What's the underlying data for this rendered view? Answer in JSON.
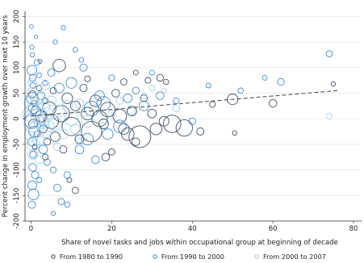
{
  "chart_data": {
    "type": "scatter",
    "xlabel": "Share of novel tasks  and jobs within occupational group at beginning of decade",
    "ylabel": "Percent change in employment growth over next 10 years",
    "xlim": [
      -1.5,
      82
    ],
    "ylim": [
      -200,
      210
    ],
    "xticks": [
      0,
      20,
      40,
      60,
      80
    ],
    "yticks": [
      -200,
      -150,
      -100,
      -50,
      0,
      50,
      100,
      150,
      200
    ],
    "grid": "horizontal",
    "legend_position": "bottom",
    "series": [
      {
        "name": "From 1980 to 1990",
        "color": "#2c3e5c",
        "marker": "hollow-circle",
        "points": [
          {
            "x": 0.3,
            "y": 48,
            "s": 1.5
          },
          {
            "x": 0.8,
            "y": 30,
            "s": 1.2
          },
          {
            "x": 1.2,
            "y": 15,
            "s": 2.0
          },
          {
            "x": 0.5,
            "y": -10,
            "s": 1.8
          },
          {
            "x": 1.5,
            "y": -30,
            "s": 1.3
          },
          {
            "x": 0.9,
            "y": -55,
            "s": 1.0
          },
          {
            "x": 2.0,
            "y": 60,
            "s": 1.1
          },
          {
            "x": 2.5,
            "y": 5,
            "s": 2.4
          },
          {
            "x": 3.0,
            "y": -20,
            "s": 1.6
          },
          {
            "x": 3.5,
            "y": 35,
            "s": 1.2
          },
          {
            "x": 4.0,
            "y": -45,
            "s": 1.4
          },
          {
            "x": 4.5,
            "y": 20,
            "s": 2.8
          },
          {
            "x": 5.0,
            "y": -5,
            "s": 3.0
          },
          {
            "x": 5.5,
            "y": 55,
            "s": 1.3
          },
          {
            "x": 6.0,
            "y": -35,
            "s": 2.0
          },
          {
            "x": 7.0,
            "y": 104,
            "s": 2.6
          },
          {
            "x": 7.5,
            "y": 10,
            "s": 3.4
          },
          {
            "x": 8.0,
            "y": -60,
            "s": 1.5
          },
          {
            "x": 9.0,
            "y": 40,
            "s": 2.2
          },
          {
            "x": 10.0,
            "y": -15,
            "s": 3.8
          },
          {
            "x": 11.0,
            "y": 25,
            "s": 2.0
          },
          {
            "x": 12.0,
            "y": -40,
            "s": 1.8
          },
          {
            "x": 13.0,
            "y": 60,
            "s": 1.5
          },
          {
            "x": 14.0,
            "y": 10,
            "s": 2.6
          },
          {
            "x": 15.0,
            "y": -25,
            "s": 4.2
          },
          {
            "x": 16.0,
            "y": 35,
            "s": 2.4
          },
          {
            "x": 17.0,
            "y": 0,
            "s": 3.2
          },
          {
            "x": 18.0,
            "y": -10,
            "s": 2.0
          },
          {
            "x": 19.0,
            "y": 18,
            "s": 3.0
          },
          {
            "x": 20.0,
            "y": -65,
            "s": 1.3
          },
          {
            "x": 21.0,
            "y": 50,
            "s": 1.6
          },
          {
            "x": 22.0,
            "y": 5,
            "s": 2.8
          },
          {
            "x": 23.0,
            "y": -20,
            "s": 2.2
          },
          {
            "x": 24.0,
            "y": -30,
            "s": 2.6
          },
          {
            "x": 25.0,
            "y": 15,
            "s": 2.0
          },
          {
            "x": 26.0,
            "y": -45,
            "s": 1.6
          },
          {
            "x": 27.0,
            "y": -35,
            "s": 4.5
          },
          {
            "x": 28.0,
            "y": 40,
            "s": 1.4
          },
          {
            "x": 30.0,
            "y": 10,
            "s": 1.8
          },
          {
            "x": 31.0,
            "y": -20,
            "s": 2.4
          },
          {
            "x": 33.0,
            "y": -5,
            "s": 2.0
          },
          {
            "x": 35.0,
            "y": -10,
            "s": 3.6
          },
          {
            "x": 38.0,
            "y": -18,
            "s": 3.4
          },
          {
            "x": 42.0,
            "y": -25,
            "s": 1.5
          },
          {
            "x": 45.0,
            "y": 28,
            "s": 1.2
          },
          {
            "x": 50.0,
            "y": 38,
            "s": 2.2
          },
          {
            "x": 50.5,
            "y": -28,
            "s": 0.9
          },
          {
            "x": 60.0,
            "y": 30,
            "s": 1.6
          },
          {
            "x": 75.0,
            "y": 68,
            "s": 0.9
          },
          {
            "x": 23.0,
            "y": 72,
            "s": 1.3
          },
          {
            "x": 26.0,
            "y": 90,
            "s": 1.0
          },
          {
            "x": 29.0,
            "y": 75,
            "s": 1.2
          },
          {
            "x": 32.0,
            "y": 80,
            "s": 1.4
          },
          {
            "x": 33.5,
            "y": 72,
            "s": 1.1
          },
          {
            "x": 11.0,
            "y": -140,
            "s": 1.3
          },
          {
            "x": 3.5,
            "y": -75,
            "s": 1.2
          },
          {
            "x": 9.5,
            "y": -120,
            "s": 1.0
          },
          {
            "x": 18.5,
            "y": -75,
            "s": 1.6
          },
          {
            "x": 14.0,
            "y": 78,
            "s": 1.2
          },
          {
            "x": 2.2,
            "y": 112,
            "s": 0.8
          }
        ]
      },
      {
        "name": "From 1990 to 2000",
        "color": "#2f7fd6",
        "marker": "hollow-circle",
        "points": [
          {
            "x": 0.1,
            "y": 180,
            "s": 0.8
          },
          {
            "x": 0.2,
            "y": 140,
            "s": 0.9
          },
          {
            "x": 0.3,
            "y": 125,
            "s": 0.9
          },
          {
            "x": 0.2,
            "y": 95,
            "s": 2.0
          },
          {
            "x": 0.4,
            "y": 80,
            "s": 1.4
          },
          {
            "x": 0.5,
            "y": 65,
            "s": 1.2
          },
          {
            "x": 0.3,
            "y": 40,
            "s": 2.4
          },
          {
            "x": 0.6,
            "y": 20,
            "s": 2.0
          },
          {
            "x": 0.2,
            "y": -5,
            "s": 3.0
          },
          {
            "x": 0.7,
            "y": -25,
            "s": 2.2
          },
          {
            "x": 0.3,
            "y": -45,
            "s": 1.8
          },
          {
            "x": 0.5,
            "y": -70,
            "s": 1.4
          },
          {
            "x": 0.4,
            "y": -95,
            "s": 1.6
          },
          {
            "x": 0.3,
            "y": -130,
            "s": 1.8
          },
          {
            "x": 0.6,
            "y": -148,
            "s": 2.2
          },
          {
            "x": 0.2,
            "y": -168,
            "s": 1.5
          },
          {
            "x": 1.5,
            "y": 110,
            "s": 1.2
          },
          {
            "x": 2.0,
            "y": 85,
            "s": 1.0
          },
          {
            "x": 2.5,
            "y": 45,
            "s": 1.6
          },
          {
            "x": 3.0,
            "y": -60,
            "s": 1.8
          },
          {
            "x": 3.5,
            "y": 70,
            "s": 1.1
          },
          {
            "x": 4.0,
            "y": -85,
            "s": 1.3
          },
          {
            "x": 5.0,
            "y": 90,
            "s": 1.5
          },
          {
            "x": 5.5,
            "y": -100,
            "s": 1.2
          },
          {
            "x": 6.0,
            "y": 150,
            "s": 0.9
          },
          {
            "x": 6.5,
            "y": -135,
            "s": 1.5
          },
          {
            "x": 7.0,
            "y": 60,
            "s": 2.0
          },
          {
            "x": 8.0,
            "y": 178,
            "s": 0.9
          },
          {
            "x": 9.0,
            "y": -110,
            "s": 1.4
          },
          {
            "x": 10.0,
            "y": 70,
            "s": 2.2
          },
          {
            "x": 11.0,
            "y": 135,
            "s": 1.0
          },
          {
            "x": 12.0,
            "y": -60,
            "s": 1.8
          },
          {
            "x": 13.0,
            "y": 100,
            "s": 1.5
          },
          {
            "x": 14.0,
            "y": -40,
            "s": 2.4
          },
          {
            "x": 15.0,
            "y": 20,
            "s": 3.0
          },
          {
            "x": 16.0,
            "y": -80,
            "s": 1.6
          },
          {
            "x": 17.0,
            "y": 45,
            "s": 2.0
          },
          {
            "x": 18.0,
            "y": 30,
            "s": 2.8
          },
          {
            "x": 19.0,
            "y": -30,
            "s": 2.2
          },
          {
            "x": 20.0,
            "y": 80,
            "s": 1.2
          },
          {
            "x": 22.0,
            "y": -15,
            "s": 2.6
          },
          {
            "x": 24.0,
            "y": 40,
            "s": 1.8
          },
          {
            "x": 26.0,
            "y": 55,
            "s": 1.4
          },
          {
            "x": 28.0,
            "y": 25,
            "s": 2.0
          },
          {
            "x": 30.0,
            "y": 90,
            "s": 1.0
          },
          {
            "x": 32.0,
            "y": 45,
            "s": 1.6
          },
          {
            "x": 36.0,
            "y": 35,
            "s": 1.2
          },
          {
            "x": 40.0,
            "y": -5,
            "s": 1.4
          },
          {
            "x": 44.0,
            "y": 65,
            "s": 1.0
          },
          {
            "x": 52.0,
            "y": 55,
            "s": 1.1
          },
          {
            "x": 58.0,
            "y": 80,
            "s": 1.0
          },
          {
            "x": 62.0,
            "y": 72,
            "s": 1.4
          },
          {
            "x": 74.0,
            "y": 127,
            "s": 1.3
          },
          {
            "x": 1.0,
            "y": -110,
            "s": 1.5
          },
          {
            "x": 2.0,
            "y": -120,
            "s": 1.1
          },
          {
            "x": 7.5,
            "y": -162,
            "s": 1.3
          },
          {
            "x": 9.0,
            "y": -168,
            "s": 1.1
          },
          {
            "x": 5.5,
            "y": -185,
            "s": 0.9
          },
          {
            "x": 12.5,
            "y": 115,
            "s": 1.0
          },
          {
            "x": 1.2,
            "y": 160,
            "s": 0.7
          }
        ]
      },
      {
        "name": "From 2000 to 2007",
        "color": "#9ccbee",
        "marker": "hollow-circle",
        "points": [
          {
            "x": 0.1,
            "y": 30,
            "s": 3.0
          },
          {
            "x": 0.2,
            "y": 10,
            "s": 3.6
          },
          {
            "x": 0.3,
            "y": -10,
            "s": 3.4
          },
          {
            "x": 0.2,
            "y": -30,
            "s": 3.0
          },
          {
            "x": 0.4,
            "y": 50,
            "s": 2.4
          },
          {
            "x": 0.5,
            "y": -50,
            "s": 2.6
          },
          {
            "x": 0.3,
            "y": 70,
            "s": 1.8
          },
          {
            "x": 0.4,
            "y": -70,
            "s": 2.0
          },
          {
            "x": 0.6,
            "y": 0,
            "s": 4.0
          },
          {
            "x": 1.0,
            "y": 20,
            "s": 3.2
          },
          {
            "x": 1.2,
            "y": -20,
            "s": 3.0
          },
          {
            "x": 1.5,
            "y": 40,
            "s": 2.6
          },
          {
            "x": 1.8,
            "y": -40,
            "s": 2.4
          },
          {
            "x": 2.0,
            "y": 5,
            "s": 3.4
          },
          {
            "x": 2.5,
            "y": -5,
            "s": 3.0
          },
          {
            "x": 3.0,
            "y": 25,
            "s": 2.8
          },
          {
            "x": 3.5,
            "y": -25,
            "s": 2.6
          },
          {
            "x": 4.0,
            "y": 10,
            "s": 2.4
          },
          {
            "x": 4.5,
            "y": -15,
            "s": 2.2
          },
          {
            "x": 5.0,
            "y": 35,
            "s": 2.0
          },
          {
            "x": 6.0,
            "y": -10,
            "s": 2.6
          },
          {
            "x": 7.0,
            "y": 15,
            "s": 2.4
          },
          {
            "x": 8.0,
            "y": -30,
            "s": 2.0
          },
          {
            "x": 9.0,
            "y": 25,
            "s": 2.2
          },
          {
            "x": 10.0,
            "y": 0,
            "s": 2.8
          },
          {
            "x": 11.0,
            "y": -20,
            "s": 2.0
          },
          {
            "x": 12.0,
            "y": 30,
            "s": 1.8
          },
          {
            "x": 14.0,
            "y": -5,
            "s": 2.4
          },
          {
            "x": 16.0,
            "y": 20,
            "s": 1.6
          },
          {
            "x": 18.0,
            "y": -15,
            "s": 1.8
          },
          {
            "x": 20.0,
            "y": 10,
            "s": 1.5
          },
          {
            "x": 22.0,
            "y": 35,
            "s": 1.4
          },
          {
            "x": 25.0,
            "y": 15,
            "s": 1.6
          },
          {
            "x": 28.0,
            "y": 45,
            "s": 1.2
          },
          {
            "x": 30.0,
            "y": 60,
            "s": 1.2
          },
          {
            "x": 33.0,
            "y": 55,
            "s": 1.0
          },
          {
            "x": 36.0,
            "y": 20,
            "s": 1.4
          },
          {
            "x": 74.0,
            "y": 5,
            "s": 1.2
          },
          {
            "x": 2.0,
            "y": -80,
            "s": 1.6
          },
          {
            "x": 3.5,
            "y": 65,
            "s": 1.8
          },
          {
            "x": 6.5,
            "y": -55,
            "s": 1.6
          },
          {
            "x": 12.0,
            "y": -45,
            "s": 1.4
          }
        ]
      }
    ],
    "fit_line": {
      "style": "dashed",
      "color": "#555555",
      "x": [
        0,
        76
      ],
      "y": [
        5,
        55
      ]
    }
  }
}
